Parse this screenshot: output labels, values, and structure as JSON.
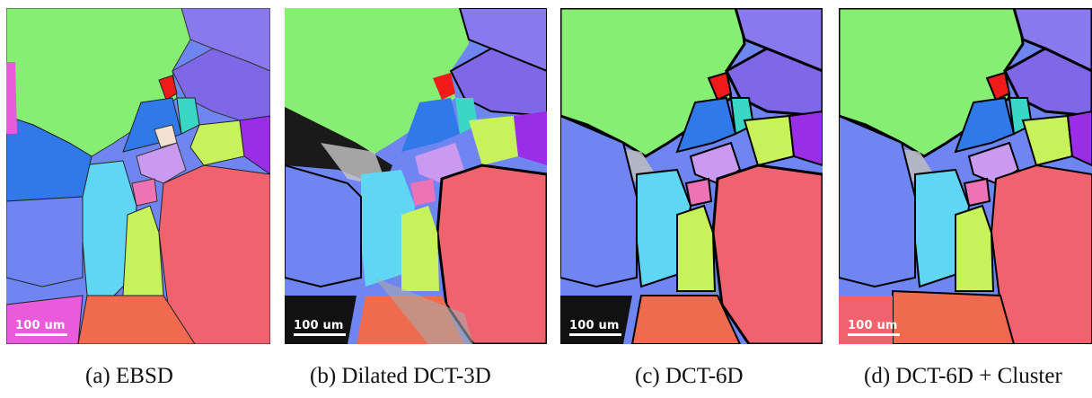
{
  "figure": {
    "panels": [
      {
        "caption": "(a) EBSD",
        "scale_label": "100 um"
      },
      {
        "caption": "(b) Dilated DCT-3D",
        "scale_label": "100 um"
      },
      {
        "caption": "(c) DCT-6D",
        "scale_label": "100 um"
      },
      {
        "caption": "(d) DCT-6D + Cluster",
        "scale_label": "100 um"
      }
    ]
  },
  "colors": {
    "green_grain": "#86ef73",
    "violet_grain": "#8a78ee",
    "blue_grain": "#2f7ae8",
    "slate_blue_grain": "#6f86f2",
    "cyan_grain": "#5fd6f4",
    "lime_grain": "#c8f25a",
    "salmon_grain": "#f1626f",
    "orange_grain": "#ef6a4f",
    "magenta_grain": "#ea5bdc",
    "purple_grain": "#9a2ee6",
    "red_grain": "#f01a1a",
    "pink_grain": "#ee72b6",
    "lavender_grain": "#c99af0",
    "teal_grain": "#3ad8c4",
    "boundary": "#000000"
  }
}
